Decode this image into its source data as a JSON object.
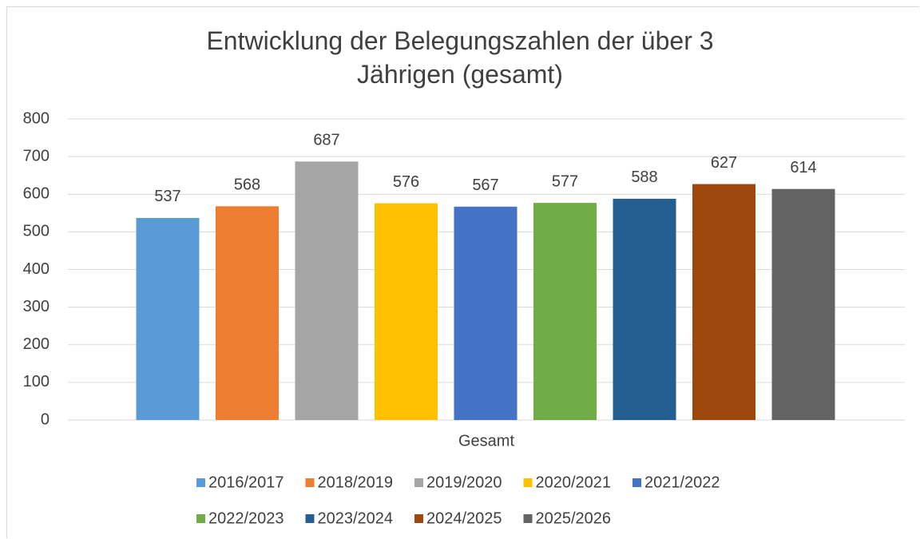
{
  "chart_data": {
    "type": "bar",
    "title": "Entwicklung der Belegungszahlen der über 3 Jährigen (gesamt)",
    "categories": [
      "Gesamt"
    ],
    "series": [
      {
        "name": "2016/2017",
        "color": "#5b9bd5",
        "values": [
          537
        ]
      },
      {
        "name": "2018/2019",
        "color": "#ed7d31",
        "values": [
          568
        ]
      },
      {
        "name": "2019/2020",
        "color": "#a5a5a5",
        "values": [
          687
        ]
      },
      {
        "name": "2020/2021",
        "color": "#ffc000",
        "values": [
          576
        ]
      },
      {
        "name": "2021/2022",
        "color": "#4472c4",
        "values": [
          567
        ]
      },
      {
        "name": "2022/2023",
        "color": "#70ad47",
        "values": [
          577
        ]
      },
      {
        "name": "2023/2024",
        "color": "#255e91",
        "values": [
          588
        ]
      },
      {
        "name": "2024/2025",
        "color": "#9e480e",
        "values": [
          627
        ]
      },
      {
        "name": "2025/2026",
        "color": "#636363",
        "values": [
          614
        ]
      }
    ],
    "ylim": [
      0,
      800
    ],
    "yticks": [
      0,
      100,
      200,
      300,
      400,
      500,
      600,
      700,
      800
    ],
    "grid": true,
    "legend": "bottom"
  }
}
